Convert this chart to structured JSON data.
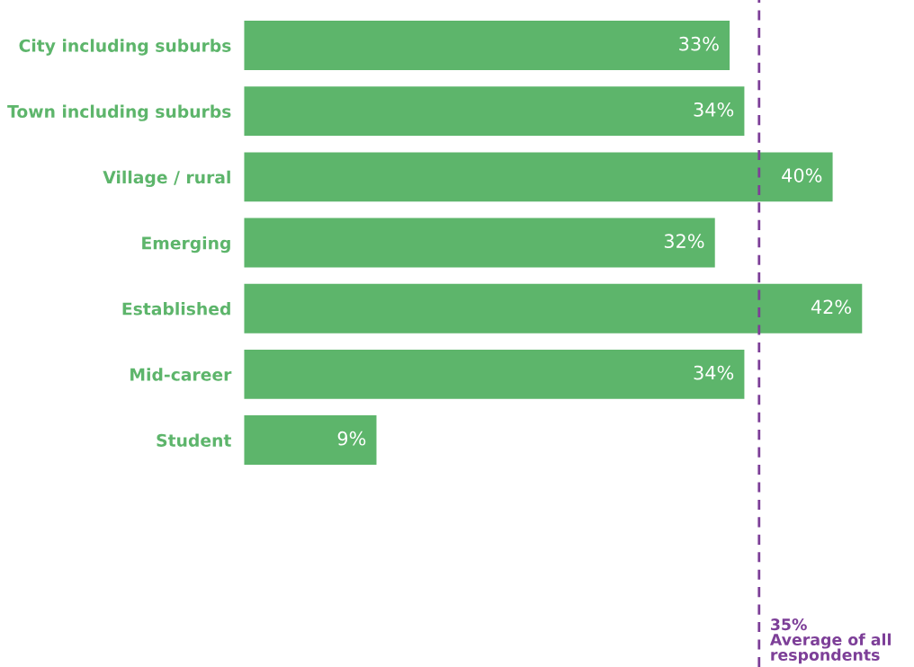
{
  "chart_data": {
    "type": "bar",
    "orientation": "horizontal",
    "categories": [
      "City including suburbs",
      "Town including suburbs",
      "Village / rural",
      "Emerging",
      "Established",
      "Mid-career",
      "Student"
    ],
    "values": [
      33,
      34,
      40,
      32,
      42,
      34,
      9
    ],
    "value_labels": [
      "33%",
      "34%",
      "40%",
      "32%",
      "42%",
      "34%",
      "9%"
    ],
    "color": "#5db56b",
    "ref_lines": [
      {
        "axis": "x",
        "value": 35,
        "label": "35%\nAverage of all\nrespondents",
        "color": "#7d3f98",
        "line_style": "dashed"
      }
    ],
    "legend": false,
    "grid": false
  }
}
